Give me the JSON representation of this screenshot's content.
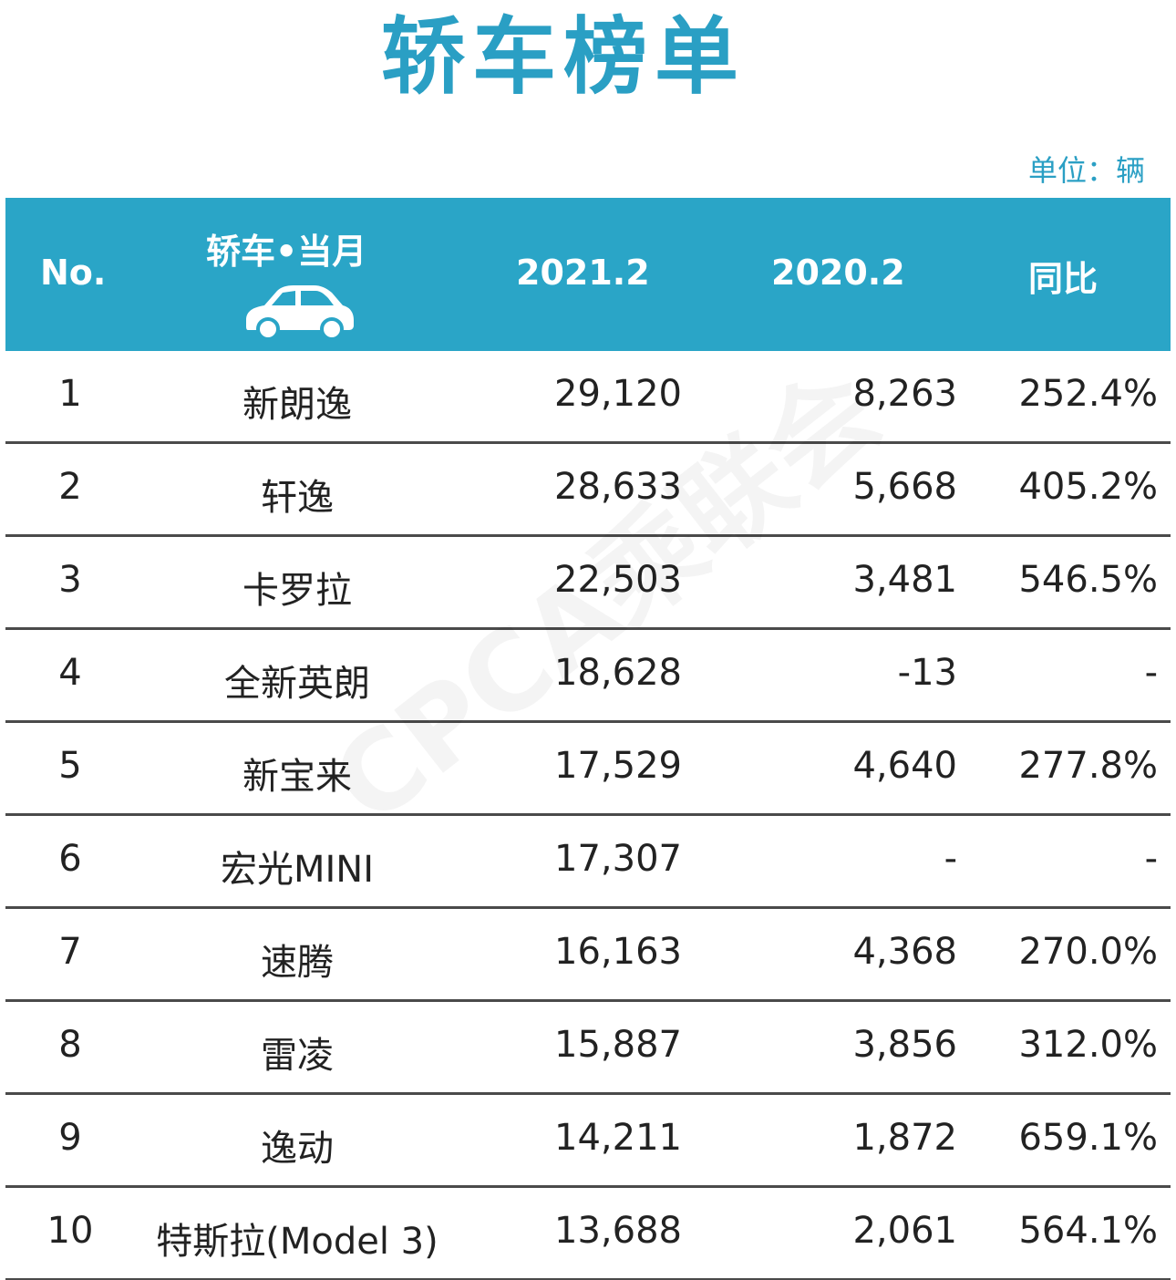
{
  "title": "轿车榜单",
  "unit": "单位：辆",
  "headers": {
    "no": "No.",
    "name": "轿车•当月",
    "y2021": "2021.2",
    "y2020": "2020.2",
    "yoy": "同比"
  },
  "icons": {
    "header_car": "car-icon"
  },
  "colors": {
    "accent": "#2aa5c7",
    "title": "#2a9fc4"
  },
  "rows": [
    {
      "no": "1",
      "name": "新朗逸",
      "y2021": "29,120",
      "y2020": "8,263",
      "yoy": "252.4%"
    },
    {
      "no": "2",
      "name": "轩逸",
      "y2021": "28,633",
      "y2020": "5,668",
      "yoy": "405.2%"
    },
    {
      "no": "3",
      "name": "卡罗拉",
      "y2021": "22,503",
      "y2020": "3,481",
      "yoy": "546.5%"
    },
    {
      "no": "4",
      "name": "全新英朗",
      "y2021": "18,628",
      "y2020": "-13",
      "yoy": "-"
    },
    {
      "no": "5",
      "name": "新宝来",
      "y2021": "17,529",
      "y2020": "4,640",
      "yoy": "277.8%"
    },
    {
      "no": "6",
      "name": "宏光MINI",
      "y2021": "17,307",
      "y2020": "-",
      "yoy": "-"
    },
    {
      "no": "7",
      "name": "速腾",
      "y2021": "16,163",
      "y2020": "4,368",
      "yoy": "270.0%"
    },
    {
      "no": "8",
      "name": "雷凌",
      "y2021": "15,887",
      "y2020": "3,856",
      "yoy": "312.0%"
    },
    {
      "no": "9",
      "name": "逸动",
      "y2021": "14,211",
      "y2020": "1,872",
      "yoy": "659.1%"
    },
    {
      "no": "10",
      "name": "特斯拉(Model 3)",
      "y2021": "13,688",
      "y2020": "2,061",
      "yoy": "564.1%"
    }
  ],
  "watermark": "CPCA乘联会"
}
